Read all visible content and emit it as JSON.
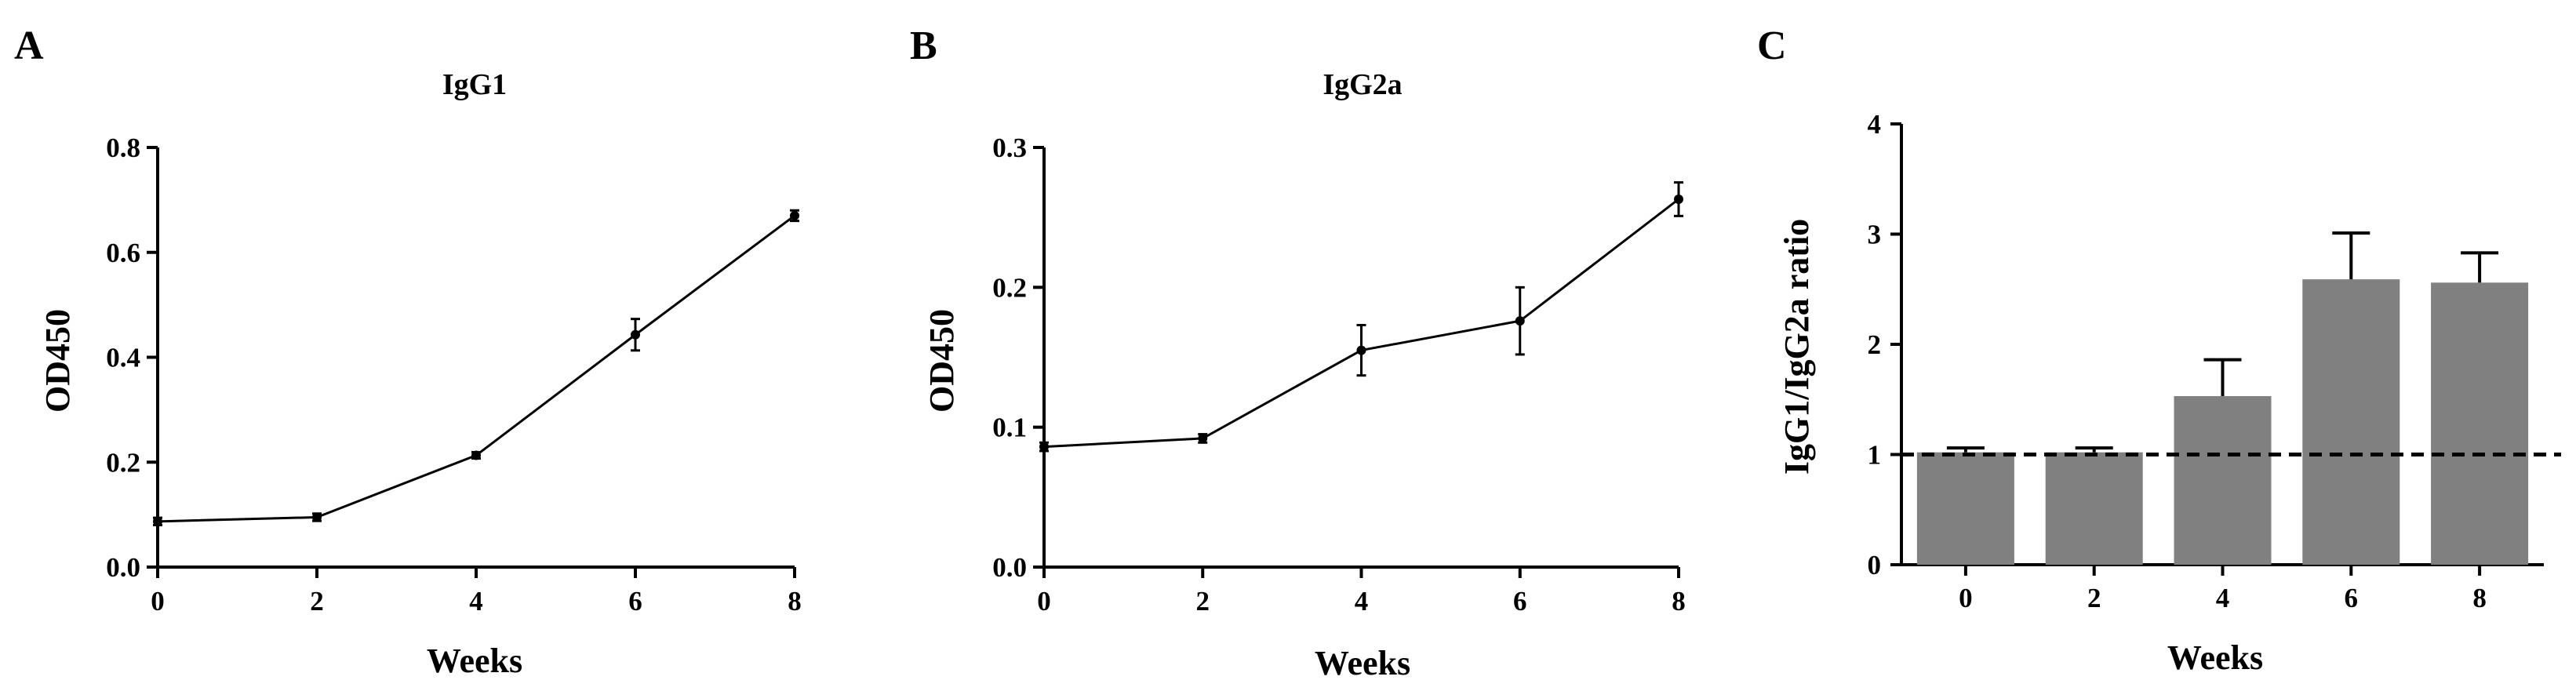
{
  "chart_data": [
    {
      "panel": "A",
      "type": "line",
      "title": "IgG1",
      "xlabel": "Weeks",
      "ylabel": "OD450",
      "x": [
        0,
        2,
        4,
        6,
        8
      ],
      "values": [
        0.087,
        0.095,
        0.213,
        0.443,
        0.67
      ],
      "errors": [
        0.007,
        0.007,
        0.006,
        0.03,
        0.01
      ],
      "xlim": [
        0,
        8
      ],
      "ylim": [
        0,
        0.8
      ],
      "xticks": [
        "0",
        "2",
        "4",
        "6",
        "8"
      ],
      "yticks": [
        "0.0",
        "0.2",
        "0.4",
        "0.6",
        "0.8"
      ]
    },
    {
      "panel": "B",
      "type": "line",
      "title": "IgG2a",
      "xlabel": "Weeks",
      "ylabel": "OD450",
      "x": [
        0,
        2,
        4,
        6,
        8
      ],
      "values": [
        0.086,
        0.092,
        0.155,
        0.176,
        0.263
      ],
      "errors": [
        0.003,
        0.003,
        0.018,
        0.024,
        0.012
      ],
      "xlim": [
        0,
        8
      ],
      "ylim": [
        0,
        0.3
      ],
      "xticks": [
        "0",
        "2",
        "4",
        "6",
        "8"
      ],
      "yticks": [
        "0.0",
        "0.1",
        "0.2",
        "0.3"
      ]
    },
    {
      "panel": "C",
      "type": "bar",
      "title": "",
      "xlabel": "Weeks",
      "ylabel": "IgG1/IgG2a ratio",
      "categories": [
        "0",
        "2",
        "4",
        "6",
        "8"
      ],
      "values": [
        1.02,
        1.02,
        1.53,
        2.59,
        2.56
      ],
      "errors": [
        0.04,
        0.04,
        0.33,
        0.42,
        0.27
      ],
      "ylim": [
        0,
        4
      ],
      "yticks": [
        "0",
        "1",
        "2",
        "3",
        "4"
      ],
      "reference_line": 1,
      "bar_color": "#808080"
    }
  ]
}
